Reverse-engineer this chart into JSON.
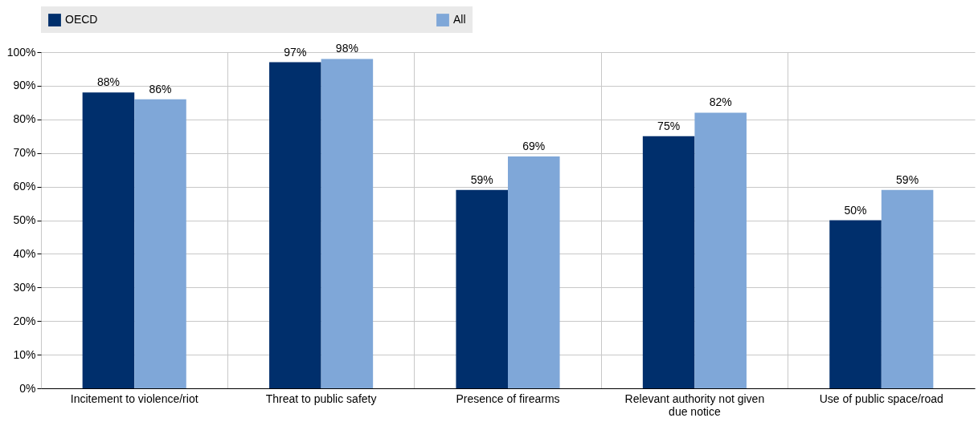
{
  "chart_data": {
    "type": "bar",
    "categories": [
      "Incitement to violence/riot",
      "Threat to public safety",
      "Presence of firearms",
      "Relevant authority not given due notice",
      "Use of public space/road"
    ],
    "series": [
      {
        "name": "OECD",
        "color": "#002f6c",
        "values": [
          88,
          97,
          59,
          75,
          50
        ],
        "value_labels": [
          "88%",
          "97%",
          "59%",
          "75%",
          "50%"
        ]
      },
      {
        "name": "All",
        "color": "#7fa7d8",
        "values": [
          86,
          98,
          69,
          82,
          59
        ],
        "value_labels": [
          "86%",
          "98%",
          "69%",
          "82%",
          "59%"
        ]
      }
    ],
    "ylim": [
      0,
      100
    ],
    "yticks": [
      {
        "value": 0,
        "label": "0%"
      },
      {
        "value": 10,
        "label": "10%"
      },
      {
        "value": 20,
        "label": "20%"
      },
      {
        "value": 30,
        "label": "30%"
      },
      {
        "value": 40,
        "label": "40%"
      },
      {
        "value": 50,
        "label": "50%"
      },
      {
        "value": 60,
        "label": "60%"
      },
      {
        "value": 70,
        "label": "70%"
      },
      {
        "value": 80,
        "label": "80%"
      },
      {
        "value": 90,
        "label": "90%"
      },
      {
        "value": 100,
        "label": "100%"
      }
    ],
    "grid": true,
    "legend": "top"
  }
}
